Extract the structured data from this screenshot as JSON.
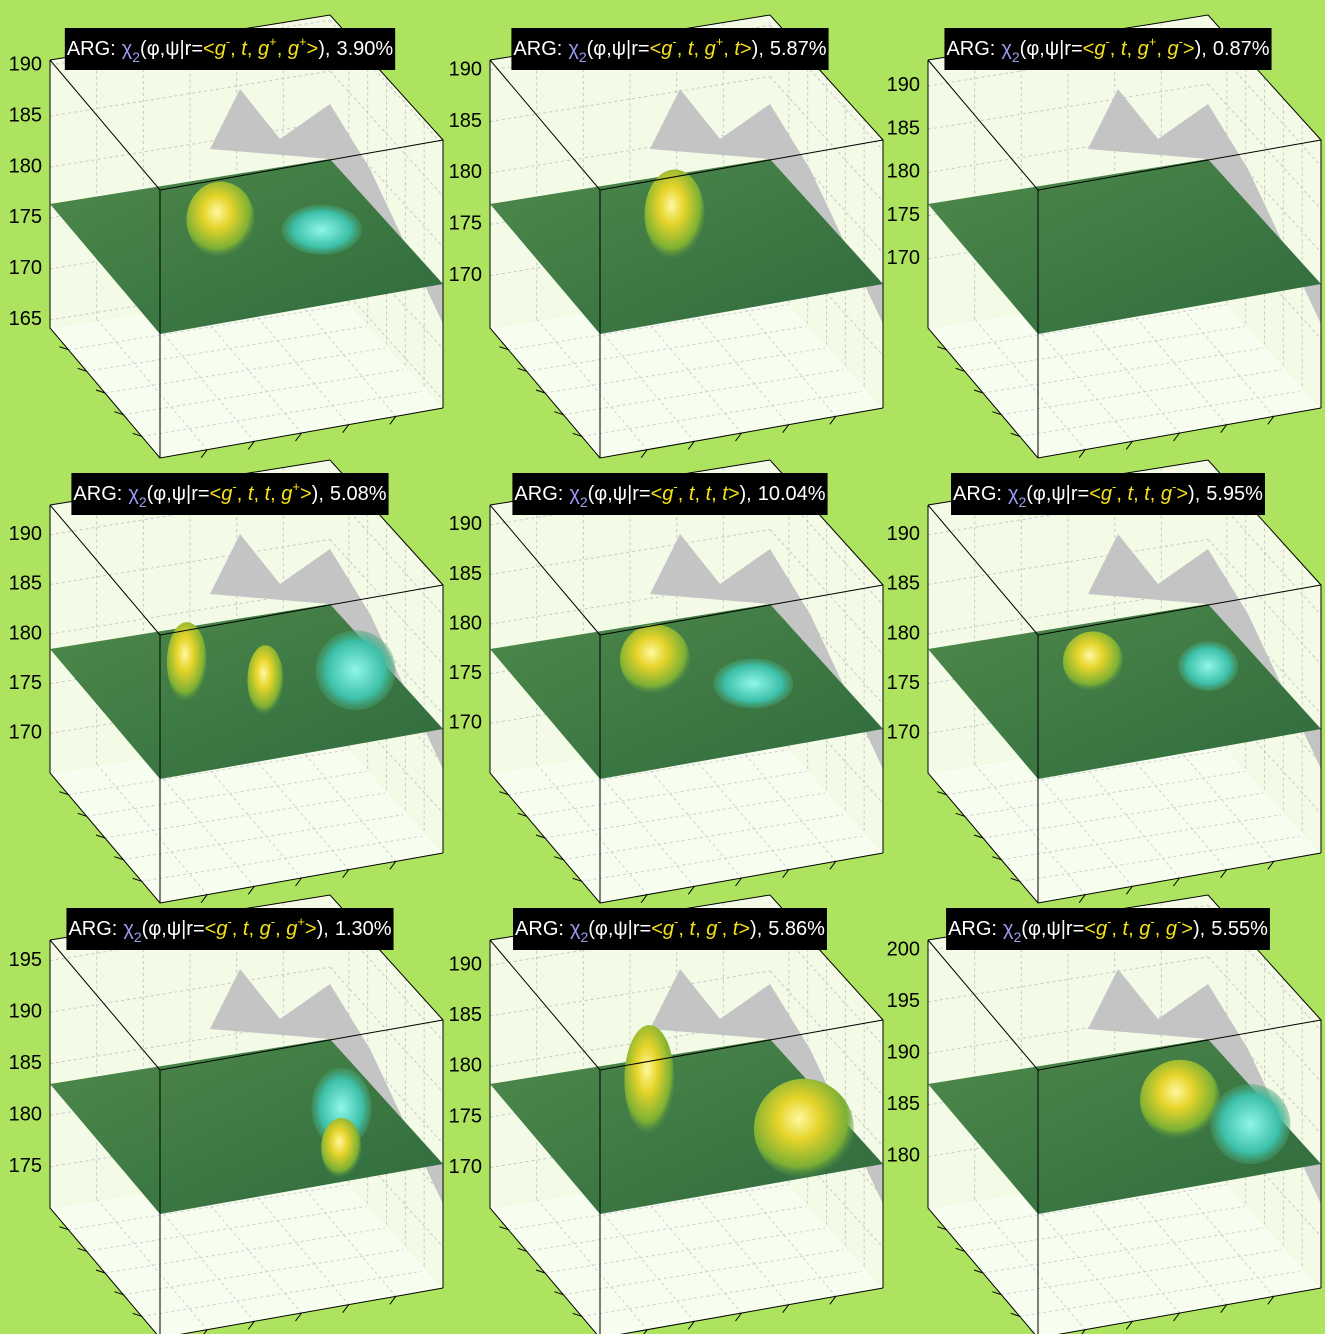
{
  "chart_data": [
    {
      "type": "surface",
      "title": {
        "label": "ARG:",
        "symbol": "χ",
        "subscript": "2",
        "args": "(φ,ψ|r=",
        "open": "<",
        "states": [
          {
            "base": "g",
            "sup": "-"
          },
          {
            "base": "t"
          },
          {
            "base": "g",
            "sup": "+"
          },
          {
            "base": "g",
            "sup": "+"
          }
        ],
        "end": ">",
        "close": "),",
        "share": "3.90%"
      },
      "zlim": [
        164.2,
        190.5
      ],
      "zticks": [
        165,
        170,
        175,
        180,
        185,
        190
      ]
    },
    {
      "type": "surface",
      "title": {
        "label": "ARG:",
        "symbol": "χ",
        "subscript": "2",
        "args": "(φ,ψ|r=",
        "open": "<",
        "states": [
          {
            "base": "g",
            "sup": "-"
          },
          {
            "base": "t"
          },
          {
            "base": "g",
            "sup": "+"
          },
          {
            "base": "t"
          }
        ],
        "end": ">",
        "close": "),",
        "share": "5.87%"
      },
      "zlim": [
        164.9,
        191
      ],
      "zticks": [
        170,
        175,
        180,
        185,
        190
      ]
    },
    {
      "type": "surface",
      "title": {
        "label": "ARG:",
        "symbol": "χ",
        "subscript": "2",
        "args": "(φ,ψ|r=",
        "open": "<",
        "states": [
          {
            "base": "g",
            "sup": "-"
          },
          {
            "base": "t"
          },
          {
            "base": "g",
            "sup": "+"
          },
          {
            "base": "g",
            "sup": "-"
          }
        ],
        "end": ">",
        "close": "),",
        "share": "0.87%"
      },
      "zlim": [
        162,
        193
      ],
      "zticks": [
        170,
        175,
        180,
        185,
        190
      ]
    },
    {
      "type": "surface",
      "title": {
        "label": "ARG:",
        "symbol": "χ",
        "subscript": "2",
        "args": "(φ,ψ|r=",
        "open": "<",
        "states": [
          {
            "base": "g",
            "sup": "-"
          },
          {
            "base": "t"
          },
          {
            "base": "t"
          },
          {
            "base": "g",
            "sup": "+"
          }
        ],
        "end": ">",
        "close": "),",
        "share": "5.08%"
      },
      "zlim": [
        166,
        193
      ],
      "zticks": [
        170,
        175,
        180,
        185,
        190
      ]
    },
    {
      "type": "surface",
      "title": {
        "label": "ARG:",
        "symbol": "χ",
        "subscript": "2",
        "args": "(φ,ψ|r=",
        "open": "<",
        "states": [
          {
            "base": "g",
            "sup": "-"
          },
          {
            "base": "t"
          },
          {
            "base": "t"
          },
          {
            "base": "t"
          }
        ],
        "end": ">",
        "close": "),",
        "share": "10.04%"
      },
      "zlim": [
        165,
        192
      ],
      "zticks": [
        170,
        175,
        180,
        185,
        190
      ]
    },
    {
      "type": "surface",
      "title": {
        "label": "ARG:",
        "symbol": "χ",
        "subscript": "2",
        "args": "(φ,ψ|r=",
        "open": "<",
        "states": [
          {
            "base": "g",
            "sup": "-"
          },
          {
            "base": "t"
          },
          {
            "base": "t"
          },
          {
            "base": "g",
            "sup": "-"
          }
        ],
        "end": ">",
        "close": "),",
        "share": "5.95%"
      },
      "zlim": [
        166,
        193
      ],
      "zticks": [
        170,
        175,
        180,
        185,
        190
      ]
    },
    {
      "type": "surface",
      "title": {
        "label": "ARG:",
        "symbol": "χ",
        "subscript": "2",
        "args": "(φ,ψ|r=",
        "open": "<",
        "states": [
          {
            "base": "g",
            "sup": "-"
          },
          {
            "base": "t"
          },
          {
            "base": "g",
            "sup": "-"
          },
          {
            "base": "g",
            "sup": "+"
          }
        ],
        "end": ">",
        "close": "),",
        "share": "1.30%"
      },
      "zlim": [
        171,
        197
      ],
      "zticks": [
        175,
        180,
        185,
        190,
        195
      ]
    },
    {
      "type": "surface",
      "title": {
        "label": "ARG:",
        "symbol": "χ",
        "subscript": "2",
        "args": "(φ,ψ|r=",
        "open": "<",
        "states": [
          {
            "base": "g",
            "sup": "-"
          },
          {
            "base": "t"
          },
          {
            "base": "g",
            "sup": "-"
          },
          {
            "base": "t"
          }
        ],
        "end": ">",
        "close": "),",
        "share": "5.86%"
      },
      "zlim": [
        166,
        192.5
      ],
      "zticks": [
        170,
        175,
        180,
        185,
        190
      ]
    },
    {
      "type": "surface",
      "title": {
        "label": "ARG:",
        "symbol": "χ",
        "subscript": "2",
        "args": "(φ,ψ|r=",
        "open": "<",
        "states": [
          {
            "base": "g",
            "sup": "-"
          },
          {
            "base": "t"
          },
          {
            "base": "g",
            "sup": "-"
          },
          {
            "base": "g",
            "sup": "-"
          }
        ],
        "end": ">",
        "close": "),",
        "share": "5.55%"
      },
      "zlim": [
        175,
        201
      ],
      "zticks": [
        180,
        185,
        190,
        195,
        200
      ]
    }
  ]
}
